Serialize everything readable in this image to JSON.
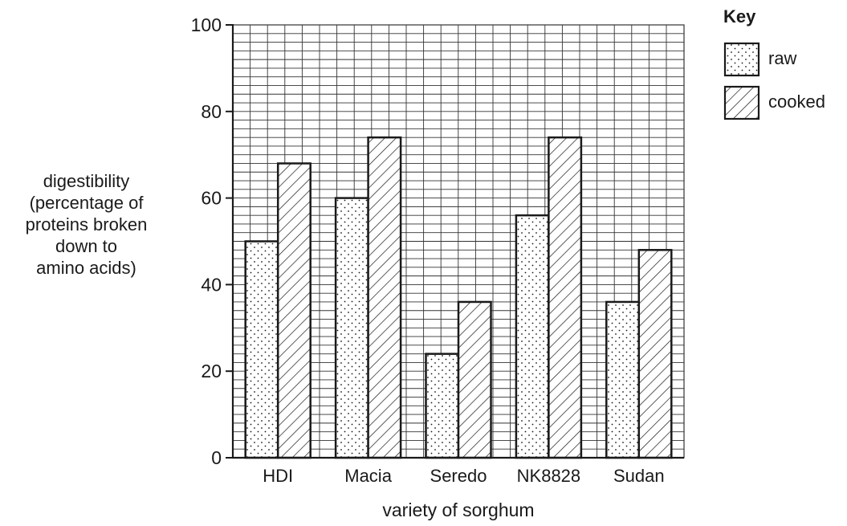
{
  "chart_data": {
    "type": "bar",
    "categories": [
      "HDI",
      "Macia",
      "Seredo",
      "NK8828",
      "Sudan"
    ],
    "series": [
      {
        "name": "raw",
        "values": [
          50,
          60,
          24,
          56,
          36
        ],
        "pattern": "dots"
      },
      {
        "name": "cooked",
        "values": [
          68,
          74,
          36,
          74,
          48
        ],
        "pattern": "diagonal-hatch"
      }
    ],
    "xlabel": "variety of sorghum",
    "ylabel": "digestibility\n(percentage of\nproteins broken\ndown to\namino acids)",
    "ylim": [
      0,
      100
    ],
    "yticks": [
      0,
      20,
      40,
      60,
      80,
      100
    ],
    "grid": true,
    "legend": {
      "title": "Key",
      "placement": "top-right"
    },
    "colors": {
      "ink": "#1a1a1a",
      "grid": "#333333",
      "fill": "#ffffff"
    }
  }
}
